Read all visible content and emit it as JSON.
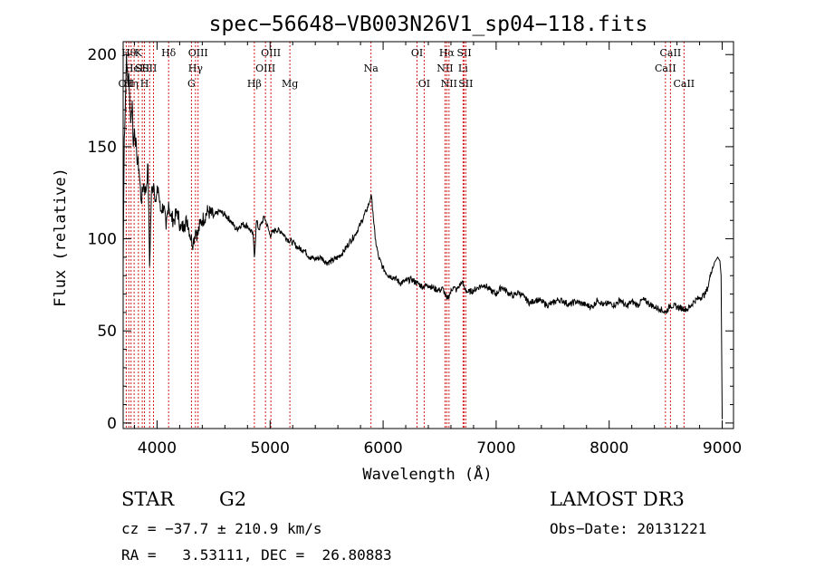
{
  "chart_data": {
    "type": "line",
    "title": "spec−56648−VB003N26V1_sp04−118.fits",
    "xlabel": "Wavelength (Å)",
    "ylabel": "Flux (relative)",
    "xlim": [
      3700,
      9100
    ],
    "ylim": [
      -3,
      207
    ],
    "xticks": [
      4000,
      5000,
      6000,
      7000,
      8000,
      9000
    ],
    "yticks": [
      0,
      50,
      100,
      150,
      200
    ],
    "grid": false,
    "line_color": "#000000",
    "marker_color": "#cc0000",
    "series": [
      {
        "x": [
          3700,
          3710,
          3720,
          3730,
          3740,
          3750,
          3760,
          3770,
          3780,
          3790,
          3800,
          3820,
          3840,
          3860,
          3880,
          3900,
          3920,
          3934,
          3950,
          3970,
          3990,
          4010,
          4030,
          4060,
          4080,
          4102,
          4120,
          4150,
          4180,
          4210,
          4240,
          4270,
          4300,
          4320,
          4340,
          4360,
          4380,
          4400,
          4450,
          4500,
          4550,
          4600,
          4650,
          4700,
          4750,
          4800,
          4850,
          4861,
          4880,
          4900,
          4950,
          5000,
          5050,
          5100,
          5150,
          5200,
          5250,
          5300,
          5350,
          5400,
          5450,
          5500,
          5550,
          5600,
          5650,
          5700,
          5750,
          5800,
          5850,
          5880,
          5893,
          5910,
          5930,
          5960,
          6000,
          6050,
          6100,
          6150,
          6200,
          6250,
          6300,
          6350,
          6400,
          6450,
          6500,
          6530,
          6563,
          6590,
          6620,
          6650,
          6680,
          6700,
          6720,
          6750,
          6800,
          6850,
          6900,
          6950,
          7000,
          7050,
          7100,
          7150,
          7200,
          7250,
          7300,
          7350,
          7400,
          7450,
          7500,
          7550,
          7600,
          7650,
          7700,
          7750,
          7800,
          7850,
          7900,
          7950,
          8000,
          8050,
          8100,
          8150,
          8200,
          8250,
          8300,
          8350,
          8400,
          8450,
          8498,
          8542,
          8600,
          8662,
          8700,
          8750,
          8800,
          8850,
          8880,
          8900,
          8930,
          8960,
          8980,
          8990,
          9000
        ],
        "values": [
          85,
          155,
          175,
          200,
          185,
          190,
          170,
          165,
          175,
          150,
          160,
          145,
          138,
          120,
          130,
          125,
          140,
          85,
          125,
          130,
          120,
          128,
          115,
          118,
          105,
          120,
          112,
          110,
          115,
          105,
          108,
          110,
          100,
          98,
          105,
          102,
          108,
          110,
          115,
          112,
          115,
          113,
          110,
          105,
          108,
          107,
          102,
          90,
          110,
          105,
          112,
          102,
          105,
          104,
          100,
          98,
          95,
          94,
          90,
          89,
          90,
          87,
          88,
          90,
          93,
          98,
          102,
          108,
          115,
          120,
          124,
          115,
          100,
          90,
          84,
          80,
          79,
          76,
          77,
          78,
          76,
          74,
          75,
          73,
          72,
          73,
          67,
          70,
          74,
          72,
          75,
          77,
          73,
          71,
          72,
          74,
          75,
          72,
          70,
          74,
          71,
          69,
          71,
          68,
          65,
          67,
          66,
          64,
          65,
          67,
          66,
          64,
          66,
          65,
          64,
          63,
          67,
          64,
          65,
          64,
          67,
          63,
          66,
          64,
          67,
          65,
          63,
          62,
          60,
          64,
          63,
          62,
          62,
          66,
          68,
          70,
          75,
          82,
          87,
          90,
          88,
          80,
          2
        ]
      }
    ],
    "line_markers": [
      {
        "w": 3727,
        "label": "OII",
        "row": 3
      },
      {
        "w": 3750,
        "label": "Hθ",
        "row": 1
      },
      {
        "w": 3770,
        "label": "Hη",
        "row": 3
      },
      {
        "w": 3797,
        "label": "HeI",
        "row": 2
      },
      {
        "w": 3835,
        "label": "K",
        "row": 1
      },
      {
        "w": 3869,
        "label": "SII",
        "row": 2
      },
      {
        "w": 3889,
        "label": "H",
        "row": 3
      },
      {
        "w": 3934,
        "label": "SII",
        "row": 2
      },
      {
        "w": 3968,
        "label": "",
        "row": 0
      },
      {
        "w": 4102,
        "label": "Hδ",
        "row": 1
      },
      {
        "w": 4304,
        "label": "G",
        "row": 3
      },
      {
        "w": 4340,
        "label": "Hγ",
        "row": 2
      },
      {
        "w": 4363,
        "label": "OIII",
        "row": 1
      },
      {
        "w": 4861,
        "label": "Hβ",
        "row": 3
      },
      {
        "w": 4959,
        "label": "OIII",
        "row": 2
      },
      {
        "w": 5007,
        "label": "OIII",
        "row": 1
      },
      {
        "w": 5175,
        "label": "Mg",
        "row": 3
      },
      {
        "w": 5893,
        "label": "Na",
        "row": 2
      },
      {
        "w": 6300,
        "label": "OI",
        "row": 1
      },
      {
        "w": 6363,
        "label": "OI",
        "row": 3
      },
      {
        "w": 6548,
        "label": "NII",
        "row": 2
      },
      {
        "w": 6563,
        "label": "Hα",
        "row": 1
      },
      {
        "w": 6583,
        "label": "NII",
        "row": 3
      },
      {
        "w": 6707,
        "label": "Li",
        "row": 2
      },
      {
        "w": 6717,
        "label": "SII",
        "row": 1
      },
      {
        "w": 6731,
        "label": "SII",
        "row": 3
      },
      {
        "w": 8498,
        "label": "CaII",
        "row": 2
      },
      {
        "w": 8542,
        "label": "CaII",
        "row": 1
      },
      {
        "w": 8662,
        "label": "CaII",
        "row": 3
      }
    ]
  },
  "info": {
    "class": "STAR",
    "subclass": "G2",
    "survey": "LAMOST DR3",
    "cz": "cz = −37.7 ± 210.9 km/s",
    "obs_date": "Obs−Date: 20131221",
    "coords": "RA =   3.53111, DEC =  26.80883"
  }
}
